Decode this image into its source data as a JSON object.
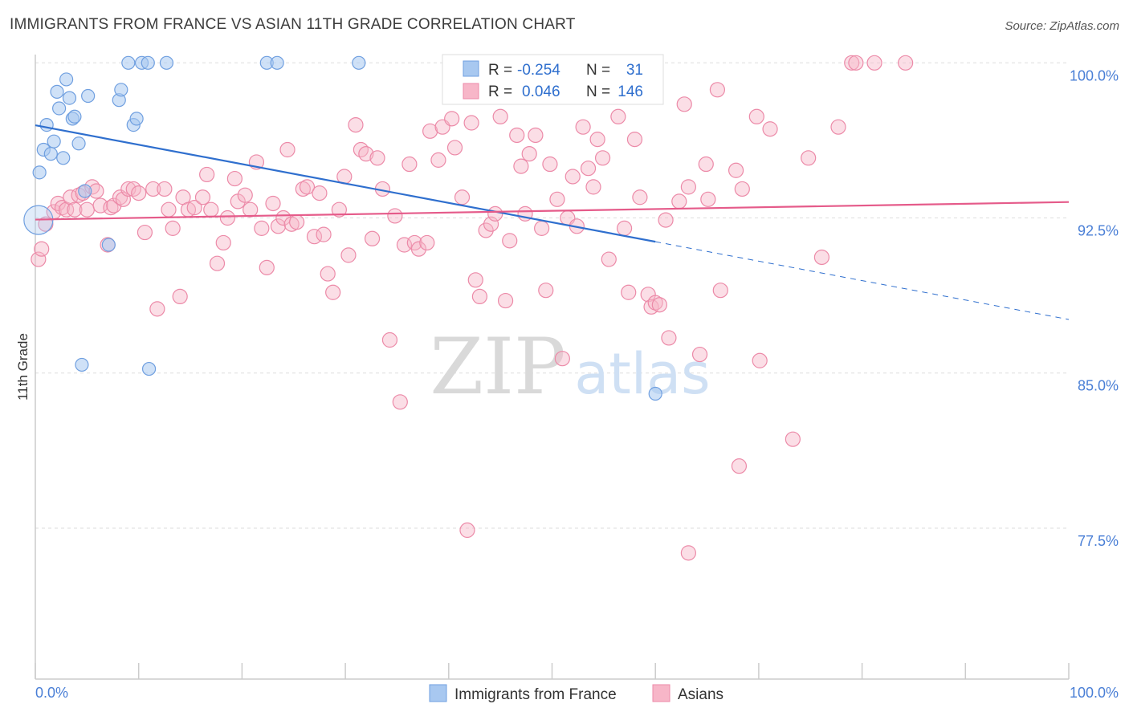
{
  "header": {
    "title": "IMMIGRANTS FROM FRANCE VS ASIAN 11TH GRADE CORRELATION CHART",
    "source": "Source: ZipAtlas.com"
  },
  "watermark": {
    "zip": "ZIP",
    "atlas": "atlas"
  },
  "colors": {
    "france": "#a8c8f0",
    "france_stroke": "#6f9fe0",
    "france_line": "#2f6fce",
    "asians": "#f7b6c8",
    "asians_stroke": "#ec8aa8",
    "asians_line": "#e55b8a",
    "accent_text": "#4a7fd6"
  },
  "legend": {
    "rows": [
      {
        "r_label": "R =",
        "r_value": "-0.254",
        "n_label": "N =",
        "n_value": "31"
      },
      {
        "r_label": "R =",
        "r_value": "0.046",
        "n_label": "N =",
        "n_value": "146"
      }
    ]
  },
  "chart_data": {
    "type": "scatter",
    "title": "IMMIGRANTS FROM FRANCE VS ASIAN 11TH GRADE CORRELATION CHART",
    "xlabel": "",
    "ylabel": "11th Grade",
    "xlim": [
      0,
      100
    ],
    "ylim": [
      70.2,
      100.4
    ],
    "x_tick_labels": [
      "0.0%",
      "100.0%"
    ],
    "y_ticks": [
      77.5,
      85.0,
      92.5,
      100.0
    ],
    "y_tick_labels": [
      "77.5%",
      "85.0%",
      "92.5%",
      "100.0%"
    ],
    "grid": "horizontal dashed",
    "legend_position": "top-center",
    "series": [
      {
        "name": "Immigrants from France",
        "color": "#a8c8f0",
        "trend": {
          "x": [
            0,
            60
          ],
          "y": [
            96.98,
            91.35
          ],
          "dashed_to": [
            100,
            87.59
          ]
        },
        "points": [
          [
            0.3,
            92.4
          ],
          [
            0.4,
            94.7
          ],
          [
            0.8,
            95.8
          ],
          [
            1.1,
            97.0
          ],
          [
            1.5,
            95.6
          ],
          [
            1.8,
            96.2
          ],
          [
            2.1,
            98.6
          ],
          [
            2.3,
            97.8
          ],
          [
            2.7,
            95.4
          ],
          [
            3.0,
            99.2
          ],
          [
            3.3,
            98.3
          ],
          [
            3.6,
            97.3
          ],
          [
            3.8,
            97.4
          ],
          [
            4.2,
            96.1
          ],
          [
            4.5,
            85.4
          ],
          [
            4.8,
            93.8
          ],
          [
            5.1,
            98.4
          ],
          [
            7.1,
            91.2
          ],
          [
            8.1,
            98.2
          ],
          [
            8.3,
            98.7
          ],
          [
            9.0,
            100.0
          ],
          [
            9.5,
            97.0
          ],
          [
            9.8,
            97.3
          ],
          [
            10.3,
            100.0
          ],
          [
            10.9,
            100.0
          ],
          [
            11.0,
            85.2
          ],
          [
            12.7,
            100.0
          ],
          [
            22.4,
            100.0
          ],
          [
            23.4,
            100.0
          ],
          [
            31.3,
            100.0
          ],
          [
            60.0,
            84.0
          ]
        ]
      },
      {
        "name": "Asians",
        "color": "#f7b6c8",
        "trend": {
          "x": [
            0,
            100
          ],
          "y": [
            92.42,
            93.27
          ]
        },
        "points": [
          [
            0.3,
            90.5
          ],
          [
            0.6,
            91.0
          ],
          [
            1.0,
            92.2
          ],
          [
            1.8,
            92.8
          ],
          [
            2.2,
            93.2
          ],
          [
            2.6,
            93.0
          ],
          [
            3.0,
            92.9
          ],
          [
            3.4,
            93.5
          ],
          [
            3.8,
            92.9
          ],
          [
            4.2,
            93.6
          ],
          [
            4.6,
            93.7
          ],
          [
            5.0,
            92.9
          ],
          [
            5.5,
            94.0
          ],
          [
            5.9,
            93.8
          ],
          [
            6.3,
            93.1
          ],
          [
            7.0,
            91.2
          ],
          [
            7.3,
            93.0
          ],
          [
            7.6,
            93.1
          ],
          [
            8.2,
            93.5
          ],
          [
            8.5,
            93.4
          ],
          [
            9.0,
            93.9
          ],
          [
            9.5,
            93.9
          ],
          [
            10.0,
            93.7
          ],
          [
            10.6,
            91.8
          ],
          [
            11.4,
            93.9
          ],
          [
            11.8,
            88.1
          ],
          [
            12.5,
            93.9
          ],
          [
            12.9,
            92.9
          ],
          [
            13.3,
            92.0
          ],
          [
            14.0,
            88.7
          ],
          [
            14.3,
            93.5
          ],
          [
            14.8,
            92.9
          ],
          [
            15.4,
            93.0
          ],
          [
            16.2,
            93.5
          ],
          [
            16.6,
            94.6
          ],
          [
            17.0,
            92.9
          ],
          [
            17.6,
            90.3
          ],
          [
            18.2,
            91.3
          ],
          [
            18.6,
            92.5
          ],
          [
            19.3,
            94.4
          ],
          [
            19.6,
            93.3
          ],
          [
            20.3,
            93.6
          ],
          [
            20.8,
            92.9
          ],
          [
            21.4,
            95.2
          ],
          [
            21.9,
            92.0
          ],
          [
            22.4,
            90.1
          ],
          [
            23.0,
            93.2
          ],
          [
            23.5,
            92.1
          ],
          [
            24.0,
            92.5
          ],
          [
            24.4,
            95.8
          ],
          [
            24.8,
            92.2
          ],
          [
            25.3,
            92.3
          ],
          [
            25.9,
            93.9
          ],
          [
            26.3,
            94.0
          ],
          [
            27.0,
            91.6
          ],
          [
            27.5,
            93.7
          ],
          [
            27.9,
            91.7
          ],
          [
            28.3,
            89.8
          ],
          [
            28.8,
            88.9
          ],
          [
            29.4,
            92.9
          ],
          [
            29.9,
            94.5
          ],
          [
            30.3,
            90.7
          ],
          [
            31.0,
            97.0
          ],
          [
            31.5,
            95.8
          ],
          [
            32.0,
            95.6
          ],
          [
            32.6,
            91.5
          ],
          [
            33.1,
            95.4
          ],
          [
            33.6,
            93.9
          ],
          [
            34.3,
            86.6
          ],
          [
            34.8,
            92.6
          ],
          [
            35.3,
            83.6
          ],
          [
            35.7,
            91.2
          ],
          [
            36.2,
            95.1
          ],
          [
            36.7,
            91.3
          ],
          [
            37.1,
            91.0
          ],
          [
            37.9,
            91.3
          ],
          [
            38.2,
            96.7
          ],
          [
            39.0,
            95.3
          ],
          [
            39.4,
            96.9
          ],
          [
            40.3,
            97.3
          ],
          [
            40.6,
            95.9
          ],
          [
            41.3,
            93.5
          ],
          [
            41.8,
            77.4
          ],
          [
            42.2,
            97.1
          ],
          [
            42.6,
            89.5
          ],
          [
            43.0,
            88.7
          ],
          [
            43.6,
            91.9
          ],
          [
            44.1,
            92.2
          ],
          [
            44.5,
            92.7
          ],
          [
            45.0,
            97.4
          ],
          [
            45.5,
            88.5
          ],
          [
            45.9,
            91.4
          ],
          [
            46.6,
            96.5
          ],
          [
            47.0,
            95.0
          ],
          [
            47.4,
            92.7
          ],
          [
            47.8,
            95.6
          ],
          [
            48.4,
            96.5
          ],
          [
            49.0,
            92.0
          ],
          [
            49.4,
            89.0
          ],
          [
            49.8,
            95.1
          ],
          [
            50.5,
            93.4
          ],
          [
            51.0,
            85.7
          ],
          [
            51.5,
            92.5
          ],
          [
            52.0,
            94.5
          ],
          [
            52.4,
            92.1
          ],
          [
            53.0,
            96.9
          ],
          [
            53.5,
            94.9
          ],
          [
            54.0,
            94.0
          ],
          [
            54.4,
            96.3
          ],
          [
            54.9,
            95.4
          ],
          [
            55.5,
            90.5
          ],
          [
            55.9,
            98.4
          ],
          [
            56.4,
            97.4
          ],
          [
            57.0,
            92.0
          ],
          [
            57.4,
            88.9
          ],
          [
            58.0,
            96.3
          ],
          [
            58.5,
            93.5
          ],
          [
            59.3,
            88.8
          ],
          [
            59.6,
            88.2
          ],
          [
            60.0,
            88.4
          ],
          [
            60.4,
            88.3
          ],
          [
            61.0,
            92.4
          ],
          [
            61.3,
            86.7
          ],
          [
            62.3,
            93.3
          ],
          [
            62.8,
            98.0
          ],
          [
            63.2,
            94.0
          ],
          [
            64.3,
            85.9
          ],
          [
            64.9,
            95.1
          ],
          [
            65.1,
            93.4
          ],
          [
            66.0,
            98.7
          ],
          [
            66.3,
            89.0
          ],
          [
            67.8,
            94.8
          ],
          [
            68.1,
            80.5
          ],
          [
            68.4,
            93.9
          ],
          [
            69.8,
            97.4
          ],
          [
            70.1,
            85.6
          ],
          [
            71.1,
            96.8
          ],
          [
            73.3,
            81.8
          ],
          [
            74.8,
            95.4
          ],
          [
            76.1,
            90.6
          ],
          [
            77.7,
            96.9
          ],
          [
            79.0,
            100.0
          ],
          [
            79.4,
            100.0
          ],
          [
            81.2,
            100.0
          ],
          [
            84.2,
            100.0
          ],
          [
            63.2,
            76.3
          ]
        ]
      }
    ]
  },
  "bottom_legend": {
    "items": [
      {
        "label": "Immigrants from France"
      },
      {
        "label": "Asians"
      }
    ]
  }
}
